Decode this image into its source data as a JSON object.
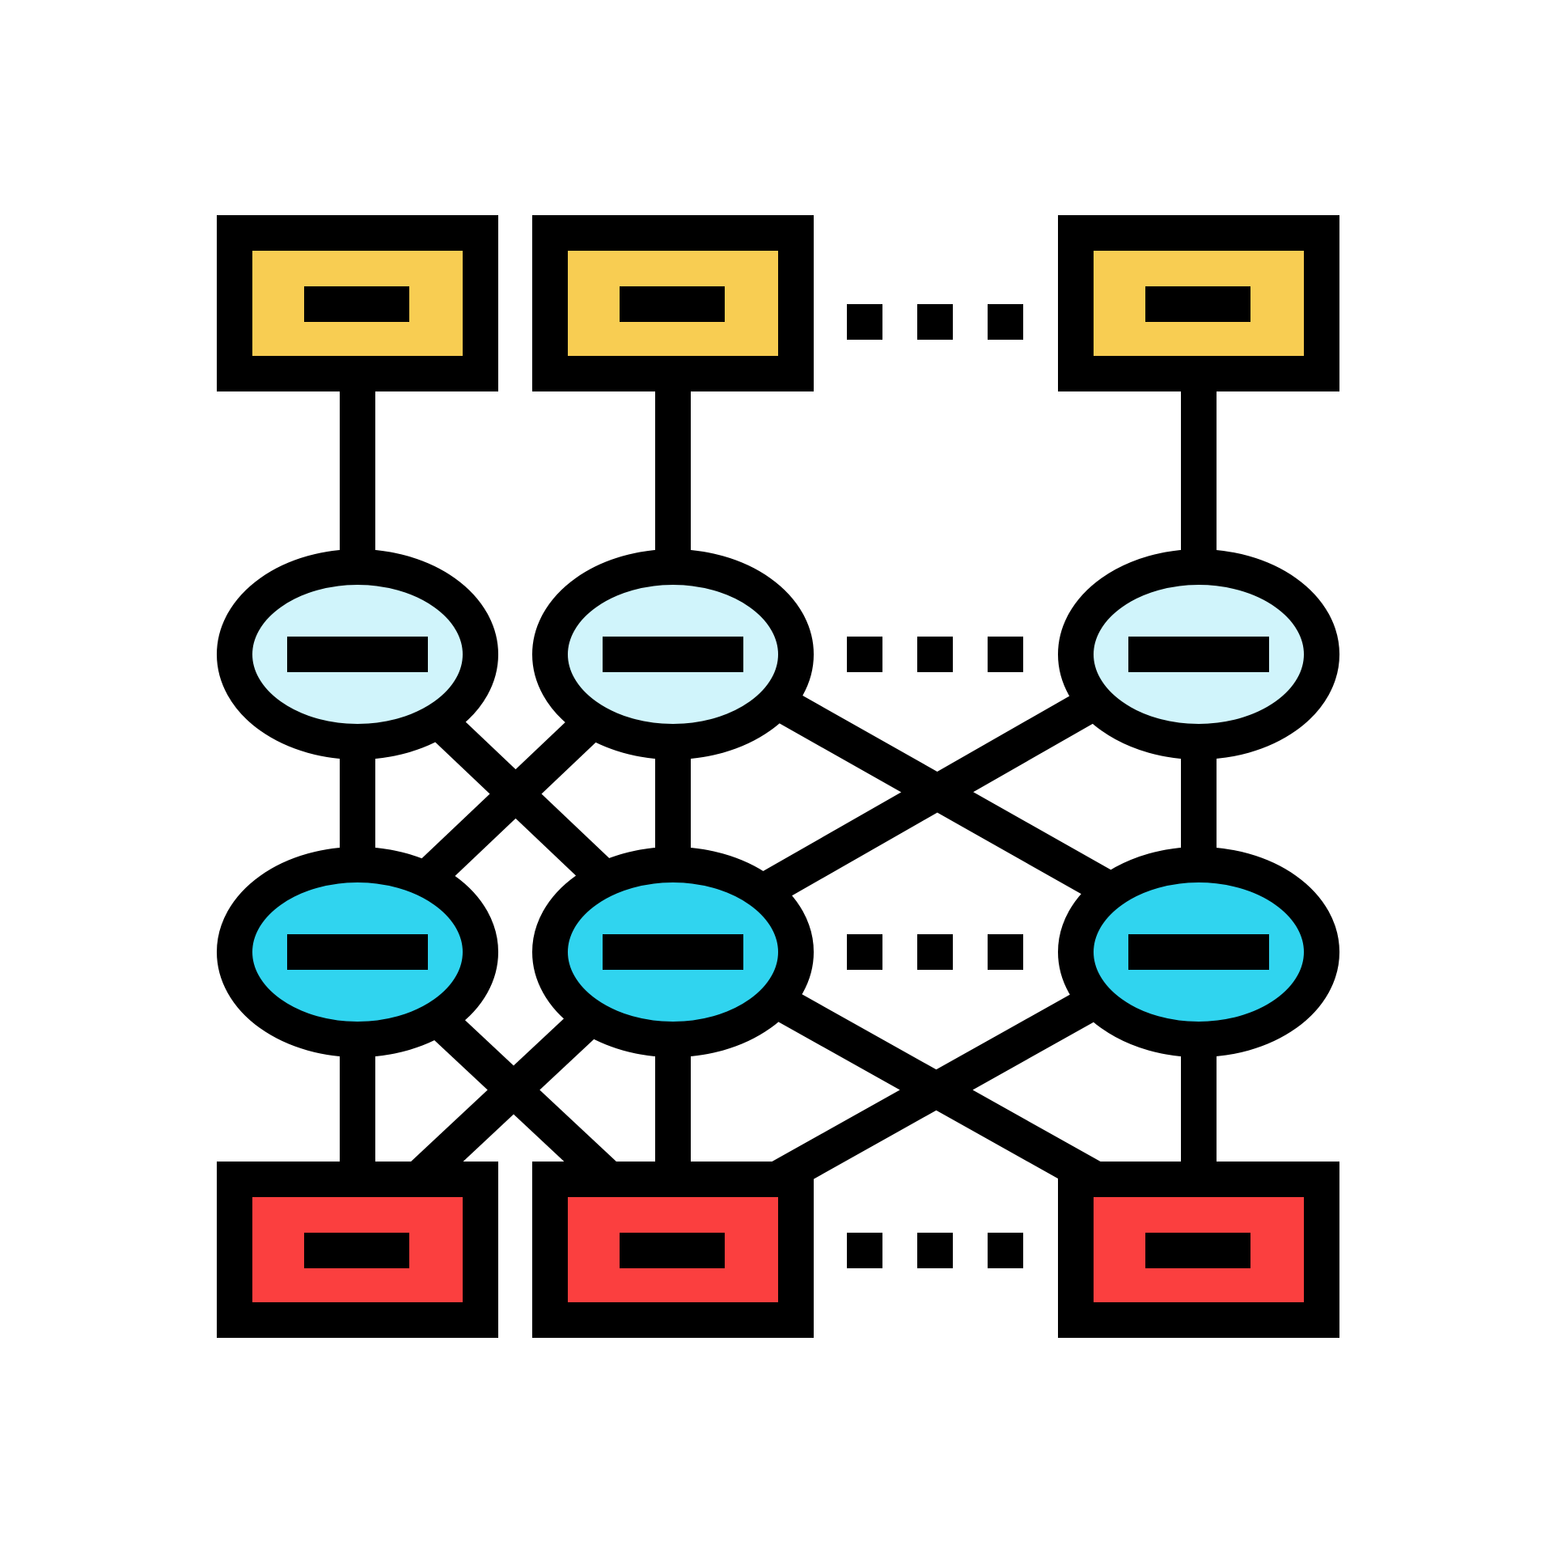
{
  "diagram": {
    "type": "neural-network-icon",
    "colors": {
      "stroke": "#000000",
      "background": "#FFFFFF",
      "input_fill": "#F8CD52",
      "hidden_layer_1_fill": "#D0F4FB",
      "hidden_layer_2_fill": "#30D4EF",
      "output_fill": "#FB3F3F"
    },
    "layers": [
      {
        "id": "input",
        "shape": "rectangle",
        "node_count": 3,
        "ellipsis_between_last_two": true
      },
      {
        "id": "hidden-1",
        "shape": "ellipse",
        "node_count": 3,
        "ellipsis_between_last_two": true
      },
      {
        "id": "hidden-2",
        "shape": "ellipse",
        "node_count": 3,
        "ellipsis_between_last_two": true
      },
      {
        "id": "output",
        "shape": "rectangle",
        "node_count": 3,
        "ellipsis_between_last_two": true
      }
    ],
    "connections": {
      "input_to_hidden_1": "one-to-one",
      "hidden_1_to_hidden_2": "adjacent-fully-connected",
      "hidden_2_to_output": "adjacent-fully-connected"
    },
    "icons": [
      "node-label-dash",
      "ellipsis-dots"
    ]
  }
}
